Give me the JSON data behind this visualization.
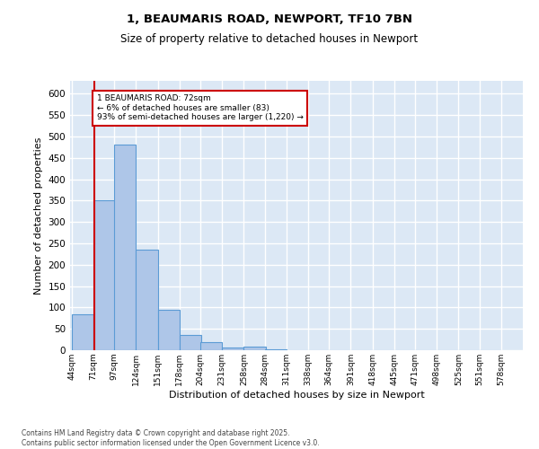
{
  "title1": "1, BEAUMARIS ROAD, NEWPORT, TF10 7BN",
  "title2": "Size of property relative to detached houses in Newport",
  "xlabel": "Distribution of detached houses by size in Newport",
  "ylabel": "Number of detached properties",
  "annotation_title": "1 BEAUMARIS ROAD: 72sqm",
  "annotation_line1": "← 6% of detached houses are smaller (83)",
  "annotation_line2": "93% of semi-detached houses are larger (1,220) →",
  "footnote1": "Contains HM Land Registry data © Crown copyright and database right 2025.",
  "footnote2": "Contains public sector information licensed under the Open Government Licence v3.0.",
  "bins": [
    44,
    71,
    97,
    124,
    151,
    178,
    204,
    231,
    258,
    284,
    311,
    338,
    364,
    391,
    418,
    445,
    471,
    498,
    525,
    551,
    578
  ],
  "values": [
    83,
    350,
    480,
    235,
    95,
    35,
    18,
    6,
    8,
    2,
    1,
    1,
    1,
    0,
    1,
    0,
    0,
    0,
    0,
    1
  ],
  "bar_color": "#aec6e8",
  "bar_edge_color": "#5b9bd5",
  "vline_x": 72,
  "vline_color": "#cc0000",
  "annotation_box_color": "#cc0000",
  "background_color": "#dce8f5",
  "ylim": [
    0,
    630
  ],
  "yticks": [
    0,
    50,
    100,
    150,
    200,
    250,
    300,
    350,
    400,
    450,
    500,
    550,
    600
  ]
}
